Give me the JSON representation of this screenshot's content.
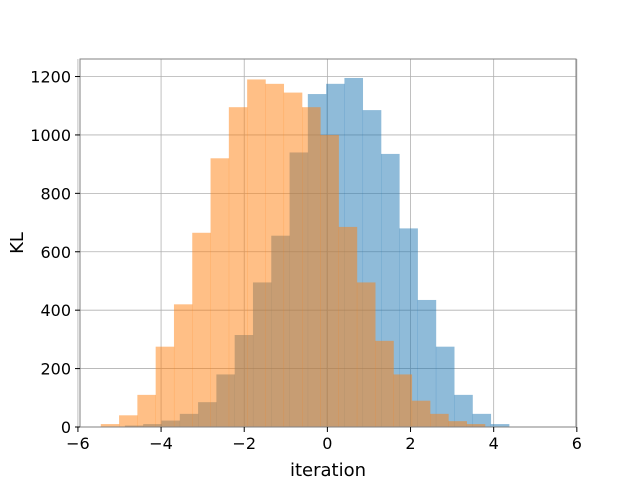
{
  "chart_data": {
    "type": "bar",
    "subtype": "histogram",
    "title": "",
    "xlabel": "iteration",
    "ylabel": "KL",
    "xlim": [
      -5.95,
      5.98
    ],
    "ylim": [
      0,
      1260
    ],
    "xticks": [
      -6,
      -4,
      -2,
      0,
      2,
      4,
      6
    ],
    "yticks": [
      0,
      200,
      400,
      600,
      800,
      1000,
      1200
    ],
    "grid": true,
    "legend": "none",
    "bin_width": 0.44,
    "series": [
      {
        "color": "#1f77b4",
        "alpha": 0.5,
        "bin_start": -4.87,
        "values": [
          5,
          10,
          22,
          45,
          85,
          180,
          315,
          495,
          655,
          940,
          1140,
          1175,
          1195,
          1085,
          935,
          680,
          435,
          275,
          110,
          45,
          10
        ]
      },
      {
        "color": "#ff7f0e",
        "alpha": 0.5,
        "bin_start": -5.45,
        "values": [
          10,
          40,
          110,
          275,
          420,
          665,
          920,
          1095,
          1190,
          1175,
          1145,
          1095,
          1000,
          685,
          495,
          295,
          180,
          90,
          45,
          20,
          10
        ]
      }
    ]
  }
}
